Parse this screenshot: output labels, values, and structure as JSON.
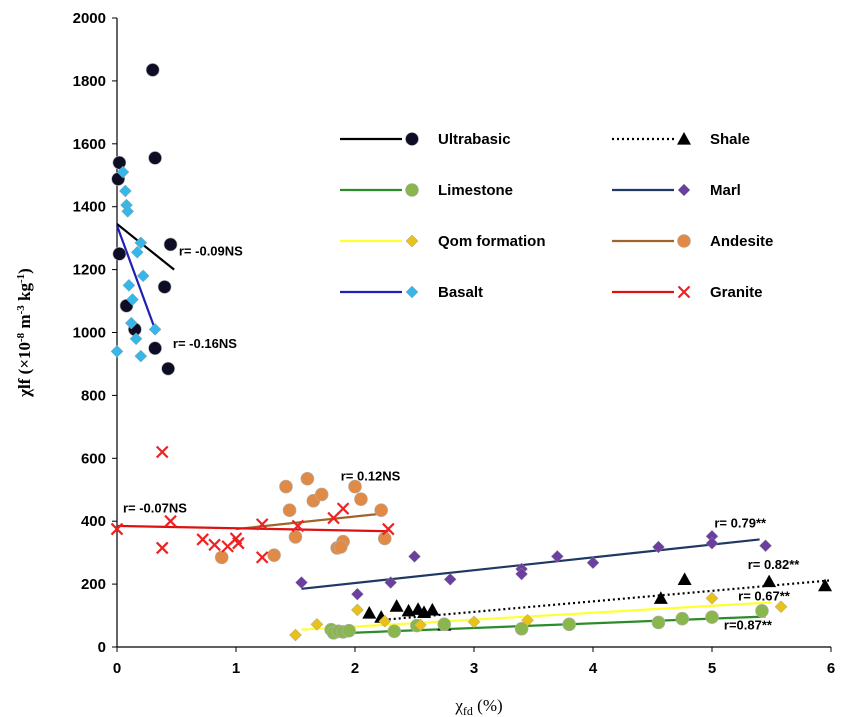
{
  "chart_data": {
    "type": "scatter",
    "xlabel_main": "χ",
    "xlabel_sub": "fd",
    "xlabel_rest": " (%)",
    "ylabel_main": "χlf (×10",
    "ylabel_sup1": "-8",
    "ylabel_mid": " m",
    "ylabel_sup2": "-3",
    "ylabel_mid2": " kg",
    "ylabel_sup3": "-1",
    "ylabel_end": ")",
    "xlim": [
      0,
      6
    ],
    "ylim": [
      0,
      2000
    ],
    "xticks": [
      "0",
      "1",
      "2",
      "3",
      "4",
      "5",
      "6"
    ],
    "yticks": [
      "0",
      "200",
      "400",
      "600",
      "800",
      "1000",
      "1200",
      "1400",
      "1600",
      "1800",
      "2000"
    ],
    "grid": false,
    "legend_position": "top-right",
    "series": [
      {
        "name": "Ultrabasic",
        "marker": "circle",
        "color": "#0d0d26",
        "line_color": "#000000",
        "line_style": "solid",
        "points": [
          [
            0.02,
            1540
          ],
          [
            0.01,
            1488
          ],
          [
            0.02,
            1250
          ],
          [
            0.08,
            1085
          ],
          [
            0.15,
            1010
          ],
          [
            0.3,
            1835
          ],
          [
            0.32,
            1555
          ],
          [
            0.32,
            950
          ],
          [
            0.4,
            1145
          ],
          [
            0.45,
            1280
          ],
          [
            0.43,
            885
          ]
        ],
        "fit": [
          [
            0.0,
            1345
          ],
          [
            0.48,
            1200
          ]
        ],
        "r_label": "r= -0.09NS",
        "r_pos": [
          0.52,
          1245
        ]
      },
      {
        "name": "Basalt",
        "marker": "diamond",
        "color": "#35b7ea",
        "line_color": "#1f1fb4",
        "line_style": "solid",
        "points": [
          [
            0.0,
            940
          ],
          [
            0.05,
            1510
          ],
          [
            0.07,
            1450
          ],
          [
            0.08,
            1405
          ],
          [
            0.09,
            1385
          ],
          [
            0.1,
            1150
          ],
          [
            0.12,
            1030
          ],
          [
            0.13,
            1105
          ],
          [
            0.16,
            980
          ],
          [
            0.17,
            1255
          ],
          [
            0.2,
            1285
          ],
          [
            0.22,
            1180
          ],
          [
            0.2,
            925
          ],
          [
            0.32,
            1010
          ]
        ],
        "fit": [
          [
            0.0,
            1340
          ],
          [
            0.32,
            1010
          ]
        ],
        "r_label": "r= -0.16NS",
        "r_pos": [
          0.47,
          950
        ]
      },
      {
        "name": "Shale",
        "marker": "triangle",
        "color": "#000000",
        "line_color": "#000000",
        "line_style": "dotted",
        "points": [
          [
            2.12,
            108
          ],
          [
            2.22,
            95
          ],
          [
            2.35,
            130
          ],
          [
            2.45,
            115
          ],
          [
            2.53,
            120
          ],
          [
            2.58,
            110
          ],
          [
            2.65,
            118
          ],
          [
            2.75,
            70
          ],
          [
            4.57,
            155
          ],
          [
            4.77,
            215
          ],
          [
            5.48,
            208
          ],
          [
            5.95,
            195
          ]
        ],
        "fit": [
          [
            2.2,
            85
          ],
          [
            6.0,
            212
          ]
        ],
        "r_label": "r= 0.82**",
        "r_pos": [
          5.3,
          248
        ]
      },
      {
        "name": "Limestone",
        "marker": "circle",
        "color": "#8ab64e",
        "line_color": "#2c8c2c",
        "line_style": "solid",
        "points": [
          [
            1.8,
            55
          ],
          [
            1.82,
            45
          ],
          [
            1.86,
            50
          ],
          [
            1.9,
            48
          ],
          [
            2.33,
            50
          ],
          [
            2.52,
            68
          ],
          [
            2.75,
            72
          ],
          [
            3.4,
            58
          ],
          [
            3.8,
            72
          ],
          [
            4.55,
            78
          ],
          [
            4.75,
            90
          ],
          [
            5.0,
            95
          ],
          [
            5.42,
            115
          ],
          [
            1.95,
            52
          ]
        ],
        "fit": [
          [
            1.83,
            43
          ],
          [
            5.45,
            97
          ]
        ],
        "r_label": "r=0.87**",
        "r_pos": [
          5.1,
          55
        ]
      },
      {
        "name": "Marl",
        "marker": "diamond",
        "color": "#6b3fa0",
        "line_color": "#1f3864",
        "line_style": "solid",
        "points": [
          [
            1.55,
            205
          ],
          [
            2.02,
            168
          ],
          [
            2.3,
            205
          ],
          [
            2.5,
            288
          ],
          [
            2.8,
            215
          ],
          [
            3.4,
            248
          ],
          [
            3.4,
            232
          ],
          [
            3.7,
            288
          ],
          [
            4.0,
            268
          ],
          [
            4.55,
            318
          ],
          [
            5.0,
            352
          ],
          [
            5.0,
            330
          ],
          [
            5.45,
            322
          ]
        ],
        "fit": [
          [
            1.55,
            185
          ],
          [
            5.4,
            342
          ]
        ],
        "r_label": "r= 0.79**",
        "r_pos": [
          5.02,
          380
        ]
      },
      {
        "name": "Qom formation",
        "marker": "diamond",
        "color": "#e8c21a",
        "line_color": "#ffff33",
        "line_style": "solid",
        "points": [
          [
            1.5,
            38
          ],
          [
            1.68,
            72
          ],
          [
            2.02,
            118
          ],
          [
            2.25,
            82
          ],
          [
            2.55,
            70
          ],
          [
            3.0,
            80
          ],
          [
            3.45,
            85
          ],
          [
            5.0,
            155
          ],
          [
            5.58,
            128
          ]
        ],
        "fit": [
          [
            1.55,
            55
          ],
          [
            5.5,
            142
          ]
        ],
        "r_label": "r= 0.67**",
        "r_pos": [
          5.22,
          148
        ]
      },
      {
        "name": "Andesite",
        "marker": "circle",
        "color": "#e08a45",
        "line_color": "#a0642a",
        "line_style": "solid",
        "points": [
          [
            0.88,
            285
          ],
          [
            1.32,
            292
          ],
          [
            1.42,
            510
          ],
          [
            1.45,
            435
          ],
          [
            1.5,
            350
          ],
          [
            1.6,
            535
          ],
          [
            1.65,
            465
          ],
          [
            1.72,
            485
          ],
          [
            1.85,
            315
          ],
          [
            1.9,
            335
          ],
          [
            2.0,
            510
          ],
          [
            2.05,
            470
          ],
          [
            2.22,
            435
          ],
          [
            2.25,
            345
          ],
          [
            1.88,
            318
          ]
        ],
        "fit": [
          [
            1.0,
            375
          ],
          [
            2.25,
            425
          ]
        ],
        "r_label": "r= 0.12NS",
        "r_pos": [
          1.88,
          530
        ]
      },
      {
        "name": "Granite",
        "marker": "x",
        "color": "#ee2222",
        "line_color": "#dd1111",
        "line_style": "solid",
        "points": [
          [
            0.0,
            375
          ],
          [
            0.38,
            620
          ],
          [
            0.38,
            315
          ],
          [
            0.45,
            400
          ],
          [
            0.72,
            342
          ],
          [
            0.82,
            325
          ],
          [
            0.93,
            320
          ],
          [
            1.0,
            345
          ],
          [
            1.02,
            330
          ],
          [
            1.22,
            285
          ],
          [
            1.22,
            390
          ],
          [
            1.52,
            385
          ],
          [
            1.82,
            410
          ],
          [
            1.9,
            440
          ],
          [
            2.28,
            375
          ]
        ],
        "fit": [
          [
            0.0,
            385
          ],
          [
            2.28,
            368
          ]
        ],
        "r_label": "r= -0.07NS",
        "r_pos": [
          0.05,
          428
        ]
      }
    ],
    "legend": [
      {
        "name": "Ultrabasic",
        "col": 0,
        "row": 0
      },
      {
        "name": "Limestone",
        "col": 0,
        "row": 1
      },
      {
        "name": "Qom formation",
        "col": 0,
        "row": 2
      },
      {
        "name": "Basalt",
        "col": 0,
        "row": 3
      },
      {
        "name": "Shale",
        "col": 1,
        "row": 0
      },
      {
        "name": "Marl",
        "col": 1,
        "row": 1
      },
      {
        "name": "Andesite",
        "col": 1,
        "row": 2
      },
      {
        "name": "Granite",
        "col": 1,
        "row": 3
      }
    ]
  }
}
